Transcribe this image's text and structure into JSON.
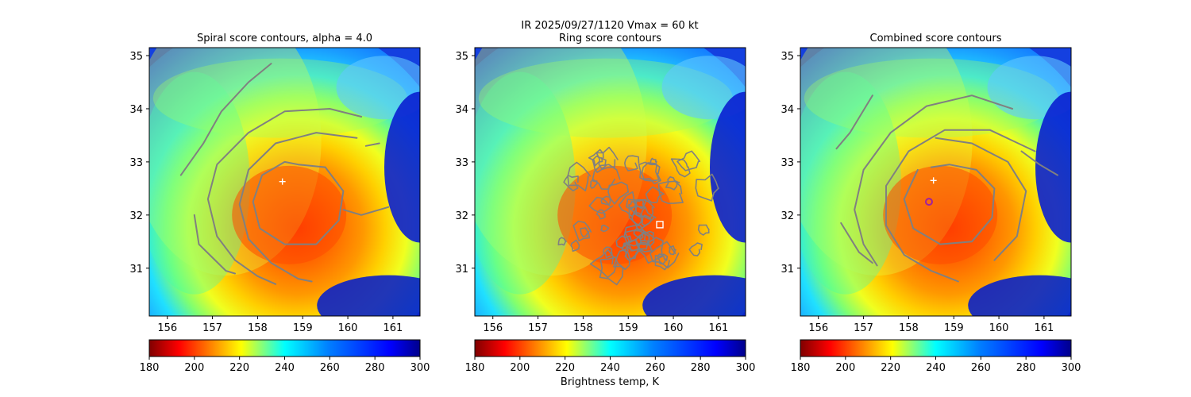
{
  "figure": {
    "suptitle_line1": "IR  2025/09/27/1120    Vmax = 60 kt",
    "colorbar_label": "Brightness temp, K"
  },
  "chart_data": [
    {
      "type": "heatmap",
      "title": "Spiral score contours, alpha =  4.0",
      "xticks": [
        156,
        157,
        158,
        159,
        160,
        161
      ],
      "yticks": [
        31,
        32,
        33,
        34,
        35
      ],
      "xlim": [
        155.6,
        161.6
      ],
      "ylim": [
        30.1,
        35.15
      ],
      "colorbar": {
        "ticks": [
          180,
          200,
          220,
          240,
          260,
          280,
          300
        ],
        "range": [
          180,
          300
        ],
        "colormap": "jet_r"
      },
      "markers": [
        {
          "shape": "plus",
          "color": "#ffffff",
          "x": 158.55,
          "y": 32.63
        }
      ],
      "contour_color": "#808080"
    },
    {
      "type": "heatmap",
      "title": "Ring score contours",
      "xticks": [
        156,
        157,
        158,
        159,
        160,
        161
      ],
      "yticks": [
        31,
        32,
        33,
        34,
        35
      ],
      "xlim": [
        155.6,
        161.6
      ],
      "ylim": [
        30.1,
        35.15
      ],
      "colorbar": {
        "ticks": [
          180,
          200,
          220,
          240,
          260,
          280,
          300
        ],
        "range": [
          180,
          300
        ],
        "colormap": "jet_r"
      },
      "markers": [
        {
          "shape": "square",
          "color": "#ffffff",
          "x": 159.7,
          "y": 31.82
        }
      ],
      "contour_color": "#808080"
    },
    {
      "type": "heatmap",
      "title": "Combined score contours",
      "xticks": [
        156,
        157,
        158,
        159,
        160,
        161
      ],
      "yticks": [
        31,
        32,
        33,
        34,
        35
      ],
      "xlim": [
        155.6,
        161.6
      ],
      "ylim": [
        30.1,
        35.15
      ],
      "colorbar": {
        "ticks": [
          180,
          200,
          220,
          240,
          260,
          280,
          300
        ],
        "range": [
          180,
          300
        ],
        "colormap": "jet_r"
      },
      "markers": [
        {
          "shape": "plus",
          "color": "#ffffff",
          "x": 158.55,
          "y": 32.65
        },
        {
          "shape": "circle",
          "color": "#a020a0",
          "x": 158.45,
          "y": 32.25
        }
      ],
      "contour_color": "#808080"
    }
  ]
}
